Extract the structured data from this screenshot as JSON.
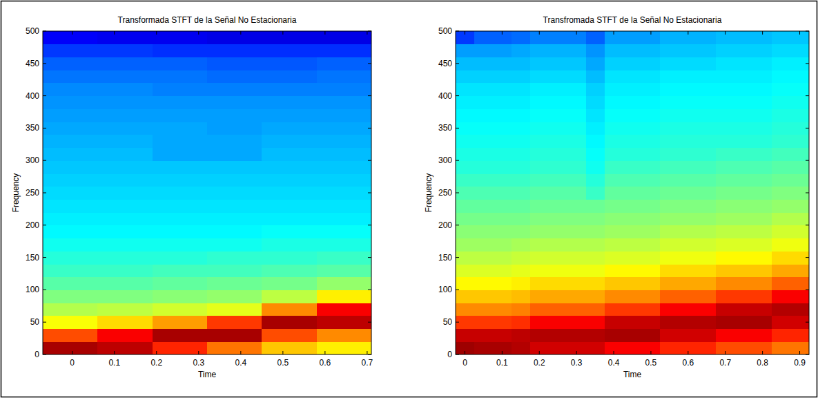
{
  "chart_data": [
    {
      "type": "heatmap",
      "title": "Transformada STFT de la Señal No Estacionaria",
      "x_label": "Time",
      "y_label": "Frequency",
      "x": [
        -0.005,
        0.125,
        0.255,
        0.385,
        0.515,
        0.645
      ],
      "y": [
        10,
        30,
        50,
        70,
        90,
        110,
        130,
        150,
        170,
        190,
        210,
        230,
        250,
        270,
        290,
        310,
        330,
        350,
        370,
        390,
        410,
        430,
        450,
        470,
        490
      ],
      "cells": [
        [
          96,
          80,
          62,
          55,
          50,
          46,
          43,
          41,
          39,
          37,
          36,
          35,
          34,
          33,
          32,
          31,
          30,
          29,
          28,
          27,
          26,
          24,
          22,
          18,
          12
        ],
        [
          94,
          88,
          66,
          56,
          50,
          46,
          43,
          41,
          39,
          37,
          36,
          35,
          34,
          33,
          32,
          31,
          30,
          29,
          28,
          27,
          26,
          24,
          22,
          18,
          11
        ],
        [
          84,
          96,
          72,
          58,
          51,
          47,
          44,
          41,
          39,
          37,
          36,
          35,
          34,
          33,
          32,
          29,
          29,
          29,
          28,
          27,
          25,
          24,
          22,
          17,
          11
        ],
        [
          76,
          96,
          82,
          60,
          52,
          48,
          44,
          42,
          39,
          37,
          36,
          35,
          34,
          33,
          32,
          29,
          29,
          28,
          28,
          27,
          25,
          23,
          21,
          17,
          10
        ],
        [
          68,
          80,
          96,
          74,
          56,
          49,
          45,
          42,
          40,
          38,
          36,
          35,
          34,
          33,
          32,
          31,
          30,
          29,
          28,
          27,
          25,
          23,
          21,
          17,
          10
        ],
        [
          64,
          74,
          94,
          88,
          64,
          52,
          46,
          43,
          40,
          38,
          36,
          35,
          34,
          33,
          32,
          31,
          30,
          29,
          28,
          27,
          25,
          24,
          22,
          17,
          10
        ]
      ],
      "color_range": [
        0,
        100
      ],
      "xlim": [
        -0.07,
        0.71
      ],
      "ylim": [
        0,
        500
      ],
      "xticks": [
        0,
        0.1,
        0.2,
        0.3,
        0.4,
        0.5,
        0.6,
        0.7
      ],
      "yticks": [
        0,
        50,
        100,
        150,
        200,
        250,
        300,
        350,
        400,
        450,
        500
      ]
    },
    {
      "type": "heatmap",
      "title": "Transfromada STFT de la Señal No Estacionaria",
      "x_label": "Time",
      "y_label": "Frequency",
      "x": [
        0,
        0.05,
        0.1,
        0.15,
        0.2,
        0.25,
        0.3,
        0.35,
        0.4,
        0.45,
        0.5,
        0.55,
        0.6,
        0.65,
        0.7,
        0.75,
        0.8,
        0.85,
        0.9
      ],
      "y": [
        10,
        30,
        50,
        70,
        90,
        110,
        130,
        150,
        170,
        190,
        210,
        230,
        250,
        270,
        290,
        310,
        330,
        350,
        370,
        390,
        410,
        430,
        450,
        470,
        490
      ],
      "cells": [
        [
          97,
          93,
          82,
          74,
          68,
          63,
          59,
          56,
          53,
          51,
          49,
          47,
          45,
          43,
          41,
          40,
          39,
          38,
          37,
          36,
          35,
          33,
          31,
          28,
          18
        ],
        [
          96,
          93,
          82,
          74,
          68,
          63,
          59,
          56,
          53,
          51,
          49,
          47,
          45,
          43,
          41,
          40,
          39,
          38,
          37,
          36,
          35,
          33,
          31,
          28,
          22
        ],
        [
          96,
          93,
          82,
          74,
          68,
          63,
          59,
          56,
          53,
          51,
          49,
          47,
          45,
          43,
          41,
          40,
          39,
          38,
          37,
          36,
          35,
          33,
          31,
          28,
          22
        ],
        [
          95,
          94,
          83,
          75,
          69,
          64,
          60,
          57,
          54,
          51,
          49,
          47,
          45,
          43,
          41,
          40,
          39,
          38,
          37,
          36,
          35,
          33,
          31,
          29,
          23
        ],
        [
          92,
          95,
          88,
          78,
          71,
          66,
          61,
          58,
          55,
          52,
          50,
          48,
          46,
          44,
          42,
          41,
          40,
          39,
          38,
          37,
          36,
          34,
          32,
          30,
          25
        ],
        [
          92,
          95,
          88,
          78,
          71,
          66,
          61,
          58,
          55,
          52,
          50,
          48,
          46,
          44,
          42,
          41,
          40,
          39,
          38,
          37,
          36,
          34,
          32,
          30,
          25
        ],
        [
          92,
          95,
          88,
          78,
          71,
          66,
          61,
          58,
          55,
          52,
          50,
          48,
          46,
          44,
          42,
          41,
          40,
          39,
          38,
          37,
          36,
          34,
          32,
          30,
          25
        ],
        [
          92,
          95,
          88,
          78,
          71,
          66,
          61,
          58,
          55,
          52,
          50,
          48,
          43,
          41,
          39,
          38,
          37,
          36,
          35,
          34,
          33,
          31,
          29,
          27,
          22
        ],
        [
          88,
          96,
          93,
          82,
          74,
          68,
          63,
          59,
          56,
          53,
          51,
          49,
          47,
          45,
          43,
          41,
          40,
          39,
          38,
          37,
          36,
          35,
          33,
          31,
          28
        ],
        [
          88,
          96,
          93,
          82,
          74,
          68,
          63,
          59,
          56,
          53,
          51,
          49,
          47,
          45,
          43,
          41,
          40,
          39,
          38,
          37,
          36,
          35,
          33,
          31,
          28
        ],
        [
          88,
          96,
          93,
          82,
          74,
          68,
          63,
          59,
          56,
          53,
          51,
          49,
          47,
          45,
          43,
          41,
          40,
          39,
          38,
          37,
          36,
          35,
          33,
          31,
          28
        ],
        [
          84,
          92,
          95,
          88,
          78,
          71,
          66,
          61,
          58,
          55,
          52,
          50,
          48,
          46,
          44,
          42,
          41,
          40,
          39,
          38,
          37,
          36,
          34,
          32,
          30
        ],
        [
          84,
          92,
          95,
          88,
          78,
          71,
          66,
          61,
          58,
          55,
          52,
          50,
          48,
          46,
          44,
          42,
          41,
          40,
          39,
          38,
          37,
          36,
          34,
          32,
          30
        ],
        [
          84,
          92,
          95,
          88,
          78,
          71,
          66,
          61,
          58,
          55,
          52,
          50,
          48,
          46,
          44,
          42,
          41,
          40,
          39,
          38,
          37,
          36,
          34,
          32,
          30
        ],
        [
          80,
          88,
          96,
          93,
          82,
          74,
          68,
          63,
          59,
          56,
          53,
          51,
          49,
          47,
          45,
          43,
          41,
          40,
          39,
          38,
          37,
          36,
          35,
          33,
          31
        ],
        [
          80,
          88,
          96,
          93,
          82,
          74,
          68,
          63,
          59,
          56,
          53,
          51,
          49,
          47,
          45,
          43,
          41,
          40,
          39,
          38,
          37,
          36,
          35,
          33,
          31
        ],
        [
          80,
          88,
          96,
          93,
          82,
          74,
          68,
          63,
          59,
          56,
          53,
          51,
          49,
          47,
          45,
          43,
          41,
          40,
          39,
          38,
          37,
          36,
          35,
          33,
          31
        ],
        [
          76,
          84,
          92,
          95,
          88,
          78,
          71,
          66,
          61,
          58,
          55,
          52,
          50,
          48,
          46,
          44,
          42,
          41,
          40,
          39,
          38,
          37,
          36,
          34,
          32
        ],
        [
          76,
          84,
          92,
          95,
          88,
          78,
          71,
          66,
          61,
          58,
          55,
          52,
          50,
          48,
          46,
          44,
          42,
          41,
          40,
          39,
          38,
          37,
          36,
          34,
          32
        ]
      ],
      "color_range": [
        0,
        100
      ],
      "xlim": [
        -0.025,
        0.925
      ],
      "ylim": [
        0,
        500
      ],
      "xticks": [
        0,
        0.1,
        0.2,
        0.3,
        0.4,
        0.5,
        0.6,
        0.7,
        0.8,
        0.9
      ],
      "yticks": [
        0,
        50,
        100,
        150,
        200,
        250,
        300,
        350,
        400,
        450,
        500
      ]
    }
  ]
}
